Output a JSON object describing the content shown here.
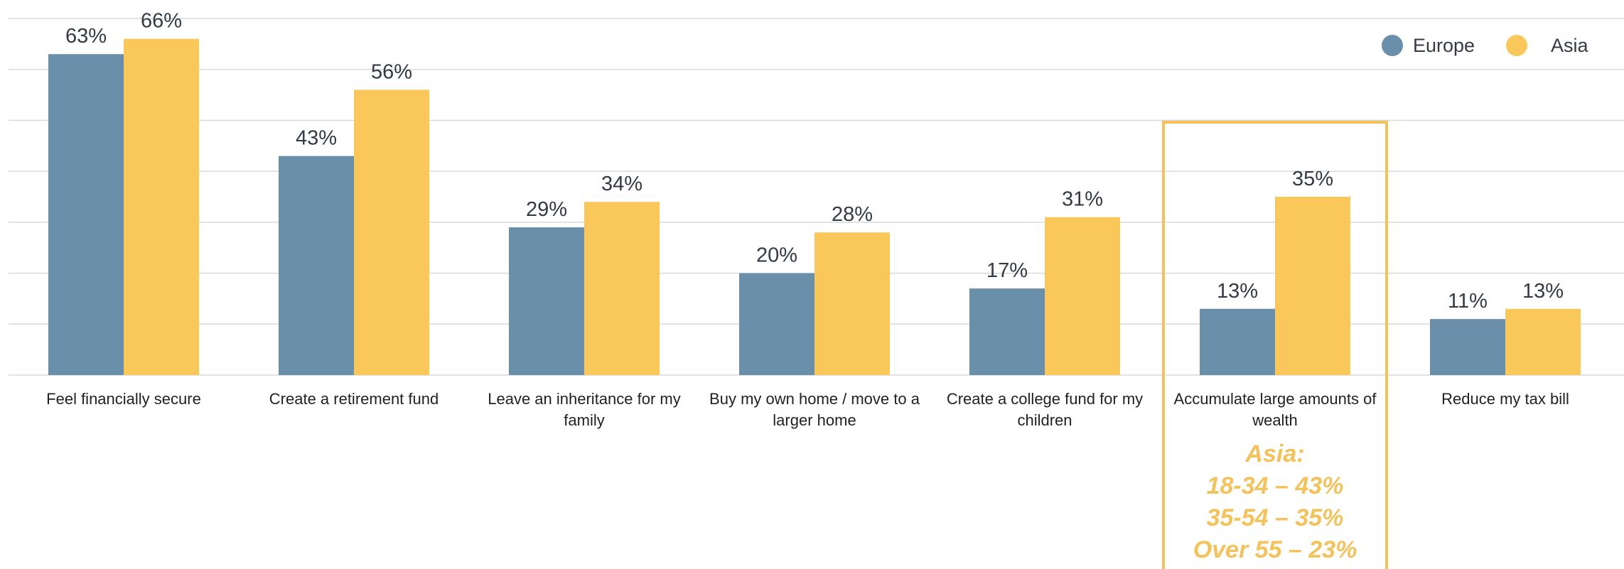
{
  "chart_data": {
    "type": "bar",
    "categories": [
      [
        "Feel financially secure"
      ],
      [
        "Create a retirement fund"
      ],
      [
        "Leave an inheritance for my",
        "family"
      ],
      [
        "Buy my own home / move to a",
        "larger home"
      ],
      [
        "Create a college fund for my",
        "children"
      ],
      [
        "Accumulate large amounts of",
        "wealth"
      ],
      [
        "Reduce my tax bill"
      ]
    ],
    "series": [
      {
        "name": "Europe",
        "color": "#6a8fab",
        "values": [
          63,
          43,
          29,
          20,
          17,
          13,
          11
        ]
      },
      {
        "name": "Asia",
        "color": "#fac85a",
        "values": [
          66,
          56,
          34,
          28,
          31,
          35,
          13
        ]
      }
    ],
    "value_suffix": "%",
    "ylim": [
      0,
      70
    ],
    "grid": true,
    "legend_position": "top-right",
    "highlight": {
      "category_index": 5,
      "color": "#f4c25b",
      "lines": [
        "Asia:",
        "18-34 – 43%",
        "35-54 – 35%",
        "Over 55 – 23%"
      ]
    }
  }
}
